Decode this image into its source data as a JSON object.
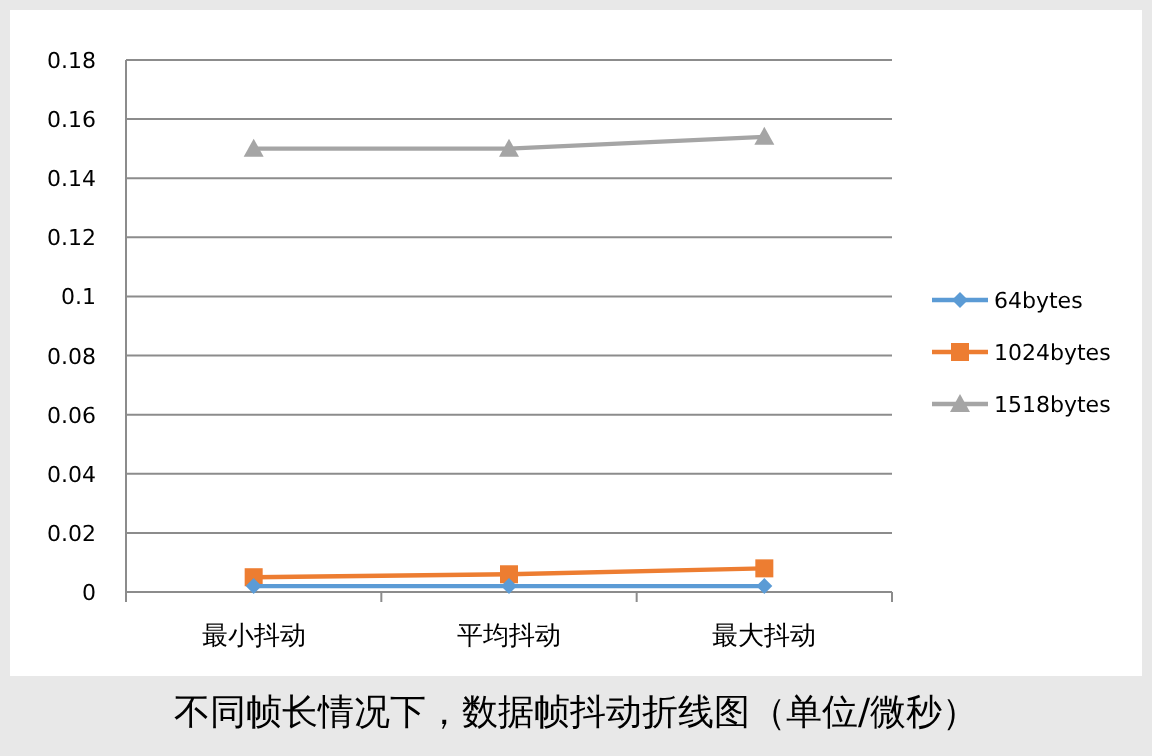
{
  "chart_data": {
    "type": "line",
    "title": "不同帧长情况下，数据帧抖动折线图（单位/微秒）",
    "categories": [
      "最小抖动",
      "平均抖动",
      "最大抖动"
    ],
    "series": [
      {
        "name": "64bytes",
        "color": "#5b9bd5",
        "marker": "diamond",
        "values": [
          0.002,
          0.002,
          0.002
        ]
      },
      {
        "name": "1024bytes",
        "color": "#ed7d31",
        "marker": "square",
        "values": [
          0.005,
          0.006,
          0.008
        ]
      },
      {
        "name": "1518bytes",
        "color": "#a5a5a5",
        "marker": "triangle",
        "values": [
          0.15,
          0.15,
          0.154
        ]
      }
    ],
    "ylim": [
      0,
      0.18
    ],
    "yticks": [
      0,
      0.02,
      0.04,
      0.06,
      0.08,
      0.1,
      0.12,
      0.14,
      0.16,
      0.18
    ],
    "grid": "y",
    "legend": "right"
  }
}
